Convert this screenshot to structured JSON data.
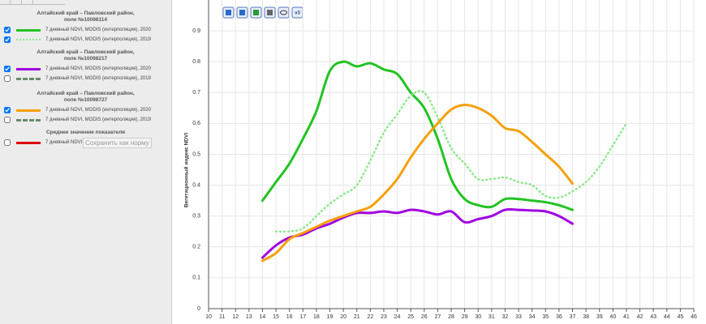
{
  "sidebar": {
    "groups": [
      {
        "title": [
          "Алтайский край – Павловский район,",
          "поле №10098114"
        ],
        "items": [
          {
            "label": "7 дневный NDVI, MODIS (интерполяция), 2020",
            "checked": true,
            "color": "#22c322",
            "style": "solid"
          },
          {
            "label": "7 дневный NDVI, MODIS (интерполяция), 2019",
            "checked": true,
            "color": "#8de88d",
            "style": "dotted"
          }
        ]
      },
      {
        "title": [
          "Алтайский край – Павловский район,",
          "поле №10098217"
        ],
        "items": [
          {
            "label": "7 дневный NDVI, MODIS (интерполяция), 2020",
            "checked": true,
            "color": "#a000e0",
            "style": "solid"
          },
          {
            "label": "7 дневный NDVI, MODIS (интерполяция), 2019",
            "checked": false,
            "color": "#6a8a6a",
            "style": "dashed"
          }
        ]
      },
      {
        "title": [
          "Алтайский край – Павловский район,",
          "поле №10098727"
        ],
        "items": [
          {
            "label": "7 дневный NDVI, MODIS (интерполяция), 2020",
            "checked": true,
            "color": "#f5a00a",
            "style": "solid"
          },
          {
            "label": "7 дневный NDVI, MODIS (интерполяция), 2019",
            "checked": false,
            "color": "#6a8a6a",
            "style": "dashed"
          }
        ]
      },
      {
        "title": [
          "Среднее значение показателя"
        ],
        "items": [
          {
            "label": "7 дневный NDVI",
            "checked": false,
            "color": "#e00000",
            "style": "solid",
            "button": "Сохранить как норму"
          }
        ]
      }
    ]
  },
  "toolbar_badge": "v3",
  "chart_data": {
    "type": "line",
    "ylabel": "Вегетационный индекс NDVI",
    "x": [
      10,
      11,
      12,
      13,
      14,
      15,
      16,
      17,
      18,
      19,
      20,
      21,
      22,
      23,
      24,
      25,
      26,
      27,
      28,
      29,
      30,
      31,
      32,
      33,
      34,
      35,
      36,
      37,
      38,
      39,
      40,
      41,
      42,
      43,
      44,
      45,
      46
    ],
    "xlim": [
      10,
      46
    ],
    "xticks": [
      10,
      11,
      12,
      13,
      14,
      15,
      16,
      17,
      18,
      19,
      20,
      21,
      22,
      23,
      24,
      25,
      26,
      27,
      28,
      29,
      30,
      31,
      32,
      33,
      34,
      35,
      36,
      37,
      38,
      39,
      40,
      41,
      42,
      43,
      44,
      45,
      46
    ],
    "ylim": [
      0,
      1
    ],
    "yticks": [
      0,
      0.1,
      0.2,
      0.3,
      0.4,
      0.5,
      0.6,
      0.7,
      0.8,
      0.9
    ],
    "grid": true,
    "series": [
      {
        "color": "#22c322",
        "style": "solid",
        "values": [
          null,
          null,
          null,
          null,
          0.35,
          0.41,
          0.47,
          0.55,
          0.64,
          0.77,
          0.8,
          0.785,
          0.795,
          0.775,
          0.76,
          0.7,
          0.65,
          0.55,
          0.42,
          0.355,
          0.335,
          0.33,
          0.355,
          0.355,
          0.35,
          0.345,
          0.335,
          0.32,
          null,
          null,
          null,
          null,
          null,
          null,
          null,
          null,
          null
        ]
      },
      {
        "color": "#8de88d",
        "style": "dotted",
        "values": [
          null,
          null,
          null,
          null,
          null,
          0.25,
          0.25,
          0.26,
          0.3,
          0.34,
          0.37,
          0.4,
          0.48,
          0.57,
          0.63,
          0.69,
          0.7,
          0.62,
          0.52,
          0.47,
          0.42,
          0.42,
          0.425,
          0.41,
          0.4,
          0.365,
          0.36,
          0.38,
          0.41,
          0.46,
          0.53,
          0.6,
          null,
          null,
          null,
          null,
          null
        ]
      },
      {
        "color": "#a000e0",
        "style": "solid",
        "values": [
          null,
          null,
          null,
          null,
          0.165,
          0.205,
          0.23,
          0.24,
          0.26,
          0.275,
          0.295,
          0.31,
          0.31,
          0.315,
          0.31,
          0.32,
          0.315,
          0.305,
          0.315,
          0.28,
          0.29,
          0.3,
          0.32,
          0.32,
          0.318,
          0.315,
          0.3,
          0.275,
          null,
          null,
          null,
          null,
          null,
          null,
          null,
          null,
          null
        ]
      },
      {
        "color": "#f5a00a",
        "style": "solid",
        "values": [
          null,
          null,
          null,
          null,
          0.155,
          0.18,
          0.225,
          0.245,
          0.265,
          0.285,
          0.3,
          0.315,
          0.33,
          0.37,
          0.42,
          0.49,
          0.55,
          0.6,
          0.645,
          0.66,
          0.65,
          0.625,
          0.585,
          0.575,
          0.54,
          0.5,
          0.46,
          0.405,
          null,
          null,
          null,
          null,
          null,
          null,
          null,
          null,
          null
        ]
      }
    ]
  }
}
